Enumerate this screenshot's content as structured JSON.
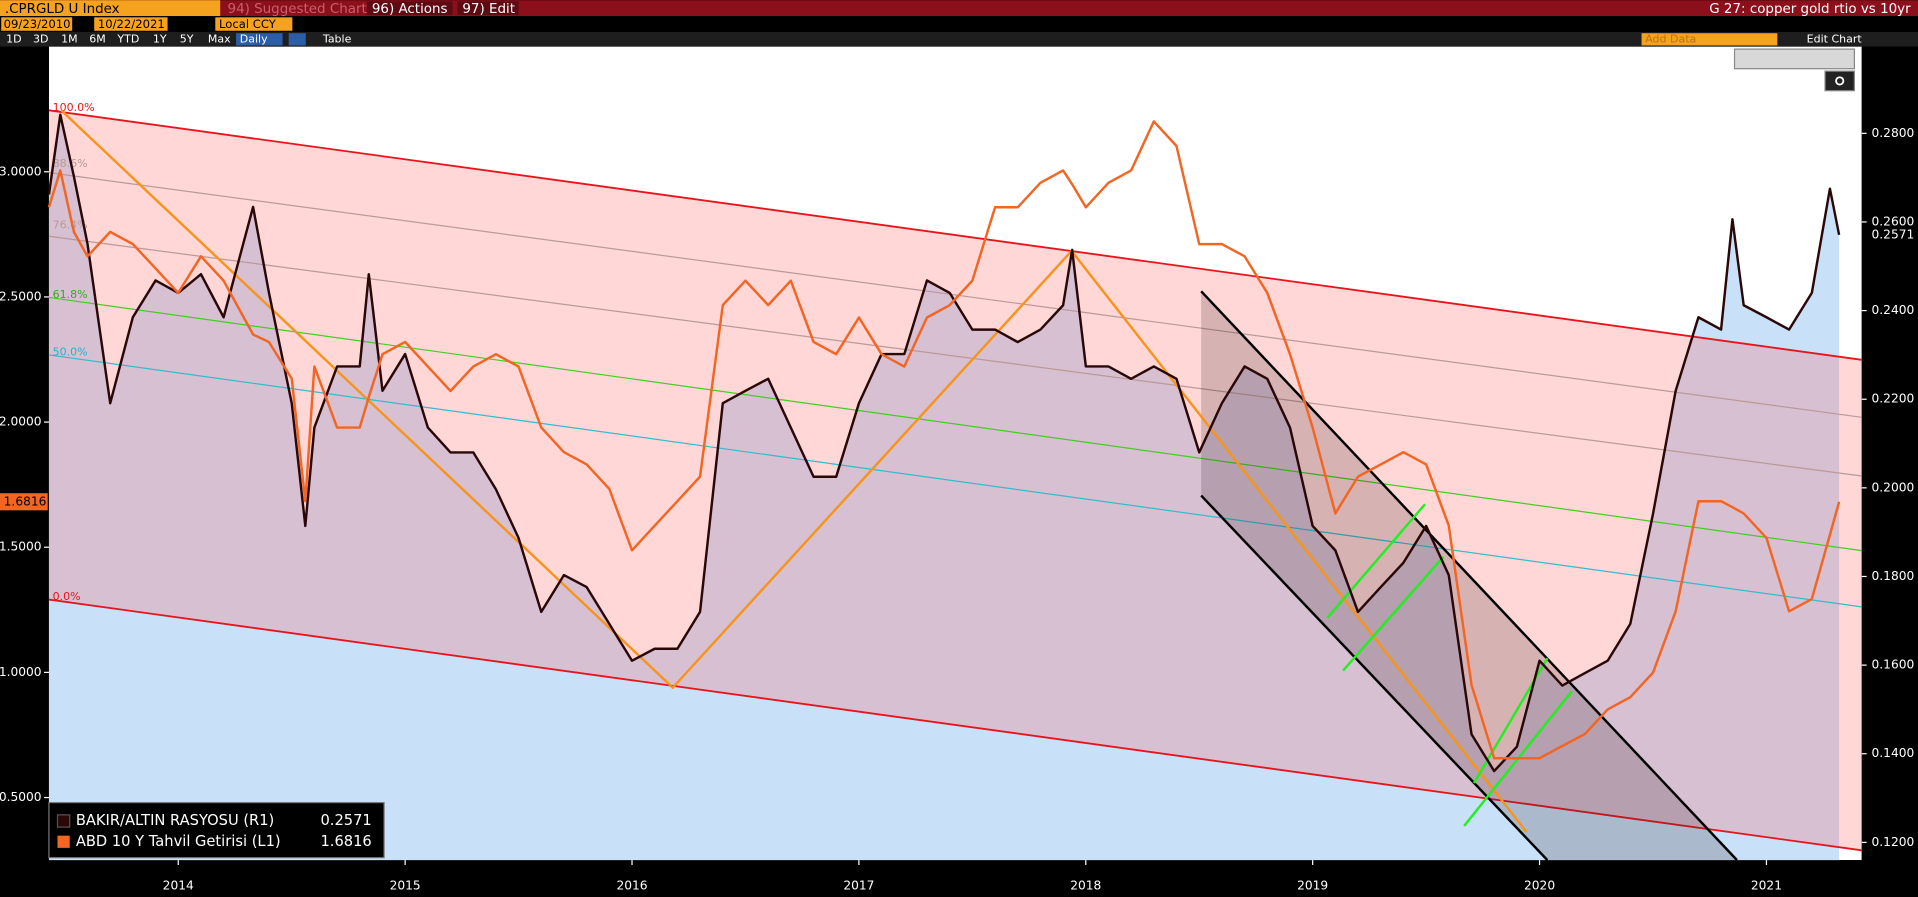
{
  "toolbar": {
    "ticker": ".CPRGLD U Index",
    "suggested": "94) Suggested Charts",
    "actions": "96) Actions",
    "edit": "97) Edit",
    "chart_name": "G 27: copper gold rtio vs 10yr",
    "start_date": "09/23/2010",
    "end_date": "10/22/2021",
    "currency": "Local CCY",
    "ranges": [
      "1D",
      "3D",
      "1M",
      "6M",
      "YTD",
      "1Y",
      "5Y",
      "Max"
    ],
    "frequency": "Daily",
    "table": "Table",
    "add_data": "Add Data",
    "edit_chart": "Edit Chart"
  },
  "chart_data": {
    "type": "line",
    "grid": false,
    "fib_levels": [
      "100.0%",
      "88.6%",
      "76.4%",
      "61.8%",
      "50.0%",
      "0.0%"
    ],
    "x": [
      2013.93,
      2013.98,
      2014.04,
      2014.1,
      2014.2,
      2014.3,
      2014.4,
      2014.5,
      2014.6,
      2014.7,
      2014.83,
      2014.9,
      2015.0,
      2015.06,
      2015.1,
      2015.2,
      2015.3,
      2015.34,
      2015.4,
      2015.5,
      2015.6,
      2015.7,
      2015.8,
      2015.9,
      2016.0,
      2016.1,
      2016.2,
      2016.3,
      2016.4,
      2016.5,
      2016.6,
      2016.7,
      2016.8,
      2016.9,
      2017.0,
      2017.1,
      2017.2,
      2017.3,
      2017.4,
      2017.5,
      2017.6,
      2017.7,
      2017.8,
      2017.9,
      2018.0,
      2018.1,
      2018.2,
      2018.3,
      2018.4,
      2018.44,
      2018.5,
      2018.6,
      2018.7,
      2018.8,
      2018.9,
      2019.0,
      2019.1,
      2019.2,
      2019.3,
      2019.4,
      2019.5,
      2019.6,
      2019.7,
      2019.8,
      2019.9,
      2020.0,
      2020.1,
      2020.2,
      2020.3,
      2020.4,
      2020.5,
      2020.6,
      2020.7,
      2020.8,
      2020.9,
      2021.0,
      2021.1,
      2021.2,
      2021.3,
      2021.35,
      2021.4,
      2021.5,
      2021.6,
      2021.7,
      2021.78,
      2021.82
    ],
    "series": [
      {
        "name": "BAKIR/ALTIN RASYOSU (R1)",
        "color": "#2a0808",
        "fill_color": "#c8e0f8",
        "axis": "y2",
        "values": [
          0.2662,
          0.2842,
          0.2703,
          0.2551,
          0.2191,
          0.2385,
          0.2468,
          0.244,
          0.2482,
          0.2385,
          0.2634,
          0.244,
          0.2191,
          0.1914,
          0.2136,
          0.2274,
          0.2274,
          0.2482,
          0.2219,
          0.2302,
          0.2136,
          0.208,
          0.208,
          0.1997,
          0.1887,
          0.172,
          0.1803,
          0.1776,
          0.1693,
          0.161,
          0.1637,
          0.1637,
          0.172,
          0.2191,
          0.2219,
          0.2246,
          0.2136,
          0.2025,
          0.2025,
          0.2191,
          0.2302,
          0.2302,
          0.2468,
          0.244,
          0.2357,
          0.2357,
          0.2329,
          0.2357,
          0.2412,
          0.2537,
          0.2274,
          0.2274,
          0.2246,
          0.2274,
          0.2246,
          0.208,
          0.2191,
          0.2274,
          0.2246,
          0.2136,
          0.1914,
          0.1859,
          0.172,
          0.1776,
          0.1831,
          0.1914,
          0.1803,
          0.1444,
          0.1361,
          0.1416,
          0.161,
          0.1554,
          0.1582,
          0.161,
          0.1693,
          0.1942,
          0.2219,
          0.2385,
          0.2357,
          0.2606,
          0.2412,
          0.2385,
          0.2357,
          0.244,
          0.2675,
          0.2571
        ]
      },
      {
        "name": "ABD 10 Y Tahvil Getirisi (L1)",
        "color": "#f26522",
        "axis": "y",
        "values": [
          2.858,
          3.005,
          2.76,
          2.662,
          2.76,
          2.711,
          2.614,
          2.516,
          2.662,
          2.565,
          2.35,
          2.32,
          2.173,
          1.684,
          2.222,
          1.978,
          1.978,
          2.1,
          2.271,
          2.32,
          2.222,
          2.124,
          2.222,
          2.271,
          2.222,
          1.978,
          1.88,
          1.831,
          1.733,
          1.488,
          1.586,
          1.684,
          1.782,
          2.467,
          2.565,
          2.467,
          2.565,
          2.32,
          2.271,
          2.418,
          2.271,
          2.222,
          2.418,
          2.467,
          2.565,
          2.858,
          2.858,
          2.956,
          3.005,
          2.95,
          2.858,
          2.956,
          3.005,
          3.201,
          3.103,
          2.711,
          2.711,
          2.662,
          2.516,
          2.271,
          1.978,
          1.635,
          1.782,
          1.831,
          1.88,
          1.831,
          1.586,
          0.95,
          0.657,
          0.657,
          0.657,
          0.706,
          0.754,
          0.852,
          0.901,
          0.999,
          1.244,
          1.684,
          1.684,
          1.66,
          1.635,
          1.537,
          1.244,
          1.293,
          1.55,
          1.6816
        ]
      }
    ],
    "xlim": [
      2013.93,
      2021.92
    ],
    "xticks": [
      {
        "value": 2014.5,
        "label": "2014"
      },
      {
        "value": 2015.5,
        "label": "2015"
      },
      {
        "value": 2016.5,
        "label": "2016"
      },
      {
        "value": 2017.5,
        "label": "2017"
      },
      {
        "value": 2018.5,
        "label": "2018"
      },
      {
        "value": 2019.5,
        "label": "2019"
      },
      {
        "value": 2020.5,
        "label": "2020"
      },
      {
        "value": 2021.5,
        "label": "2021"
      }
    ],
    "ylim": [
      0.25,
      3.49
    ],
    "yticks": [
      {
        "value": 0.5,
        "label": "0.5000"
      },
      {
        "value": 1.0,
        "label": "1.0000"
      },
      {
        "value": 1.5,
        "label": "1.5000"
      },
      {
        "value": 2.0,
        "label": "2.0000"
      },
      {
        "value": 2.5,
        "label": "2.5000"
      },
      {
        "value": 3.0,
        "label": "3.0000"
      }
    ],
    "y2lim": [
      0.116,
      0.299
    ],
    "y2ticks": [
      {
        "value": 0.12,
        "label": "0.1200"
      },
      {
        "value": 0.14,
        "label": "0.1400"
      },
      {
        "value": 0.16,
        "label": "0.1600"
      },
      {
        "value": 0.18,
        "label": "0.1800"
      },
      {
        "value": 0.2,
        "label": "0.2000"
      },
      {
        "value": 0.22,
        "label": "0.2200"
      },
      {
        "value": 0.24,
        "label": "0.2400"
      },
      {
        "value": 0.26,
        "label": "0.2600"
      },
      {
        "value": 0.28,
        "label": "0.2800"
      }
    ]
  }
}
